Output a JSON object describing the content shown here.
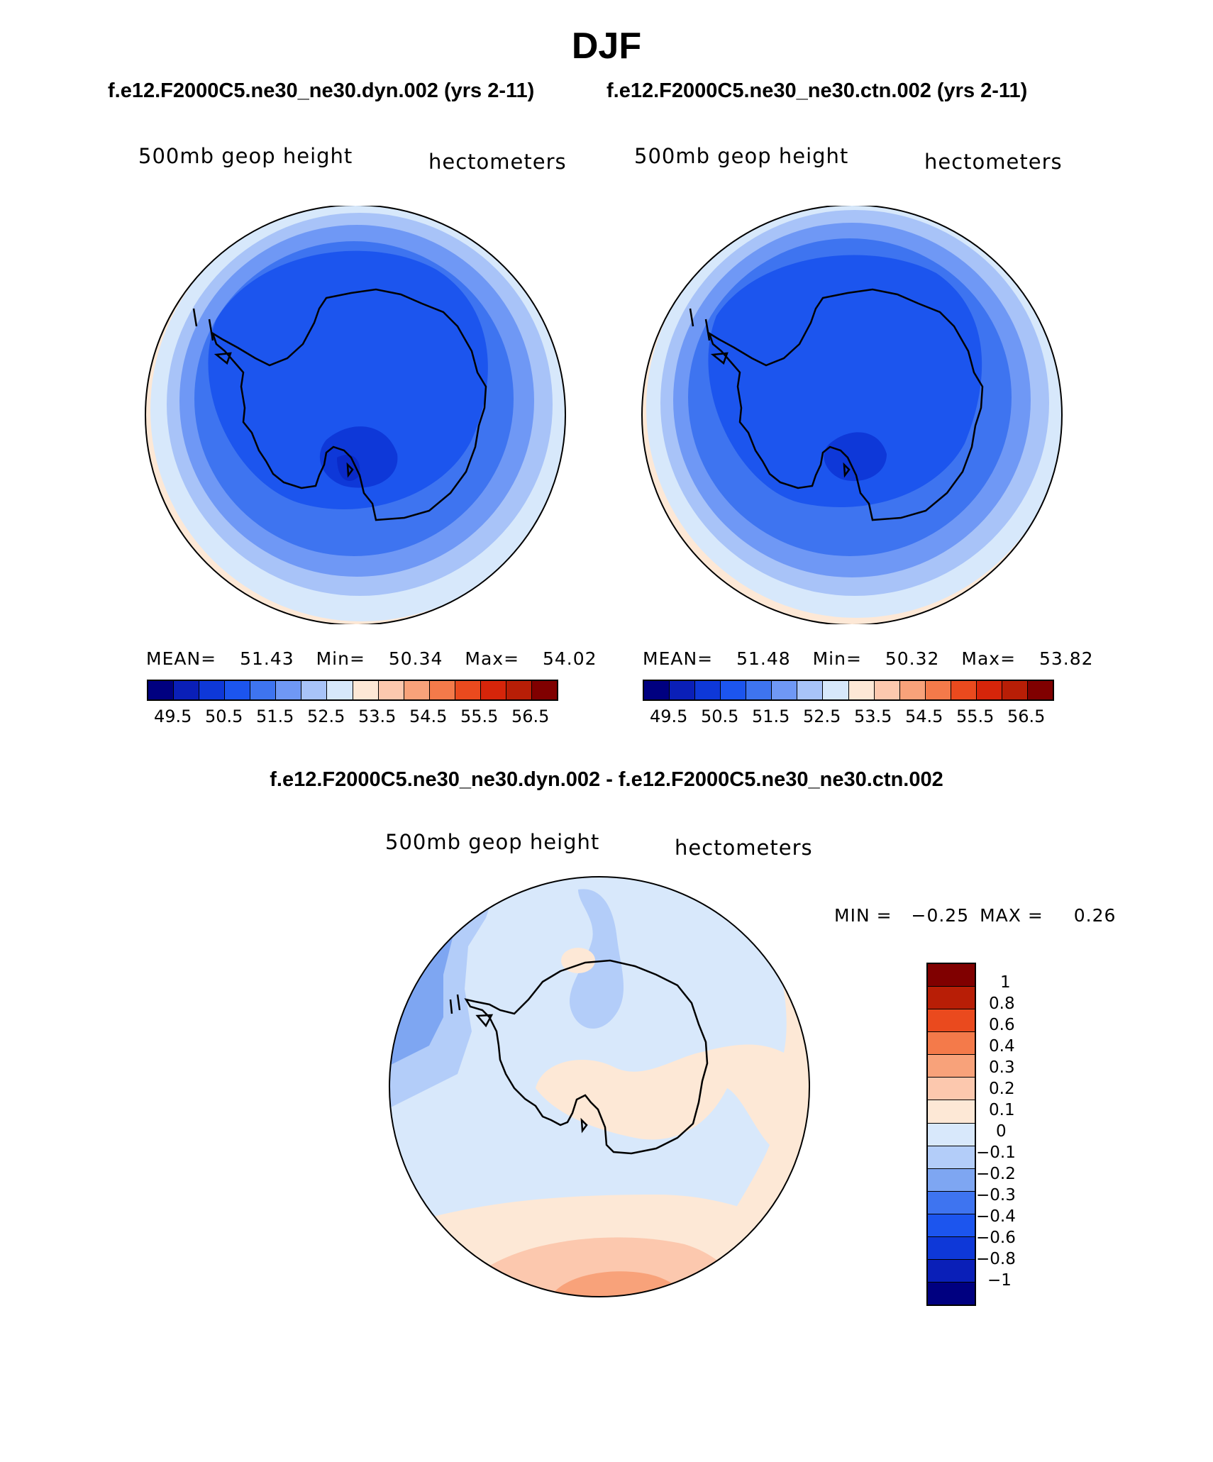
{
  "page": {
    "title": "DJF",
    "subtitle_left": "f.e12.F2000C5.ne30_ne30.dyn.002 (yrs 2-11)",
    "subtitle_right": "f.e12.F2000C5.ne30_ne30.ctn.002 (yrs 2-11)",
    "diff_title": "f.e12.F2000C5.ne30_ne30.dyn.002 - f.e12.F2000C5.ne30_ne30.ctn.002"
  },
  "colors": {
    "mean_scale": [
      "#000080",
      "#0a1fb8",
      "#0e38d8",
      "#1c55ee",
      "#3e74f0",
      "#6f98f5",
      "#a8c3f8",
      "#d7e8fb",
      "#fde8d6",
      "#fcc8ae",
      "#f8a27a",
      "#f47a4a",
      "#ea4a1e",
      "#d6250a",
      "#b81e06",
      "#800000"
    ],
    "diff_scale": [
      "#000080",
      "#0a1fb8",
      "#0e38d8",
      "#1c55ee",
      "#3e74f0",
      "#7ea6f2",
      "#b3cdf9",
      "#d8e8fb",
      "#fde8d6",
      "#fcc8ae",
      "#f8a27a",
      "#f47a4a",
      "#ea4a1e",
      "#b81e06",
      "#800000"
    ]
  },
  "panels": [
    {
      "variable": "500mb geop height",
      "units": "hectometers",
      "stats": {
        "mean_label": "MEAN=",
        "mean": "51.43",
        "min_label": "Min=",
        "min": "50.34",
        "max_label": "Max=",
        "max": "54.02"
      },
      "colorbar_labels": [
        "49.5",
        "50.5",
        "51.5",
        "52.5",
        "53.5",
        "54.5",
        "55.5",
        "56.5"
      ]
    },
    {
      "variable": "500mb geop height",
      "units": "hectometers",
      "stats": {
        "mean_label": "MEAN=",
        "mean": "51.48",
        "min_label": "Min=",
        "min": "50.32",
        "max_label": "Max=",
        "max": "53.82"
      },
      "colorbar_labels": [
        "49.5",
        "50.5",
        "51.5",
        "52.5",
        "53.5",
        "54.5",
        "55.5",
        "56.5"
      ]
    }
  ],
  "diff_panel": {
    "variable": "500mb geop height",
    "units": "hectometers",
    "min_label": "MIN =",
    "min": "−0.25",
    "max_label": "MAX =",
    "max": "0.26",
    "colorbar_labels": [
      "1",
      "0.8",
      "0.6",
      "0.4",
      "0.3",
      "0.2",
      "0.1",
      "0",
      "−0.1",
      "−0.2",
      "−0.3",
      "−0.4",
      "−0.6",
      "−0.8",
      "−1"
    ]
  }
}
